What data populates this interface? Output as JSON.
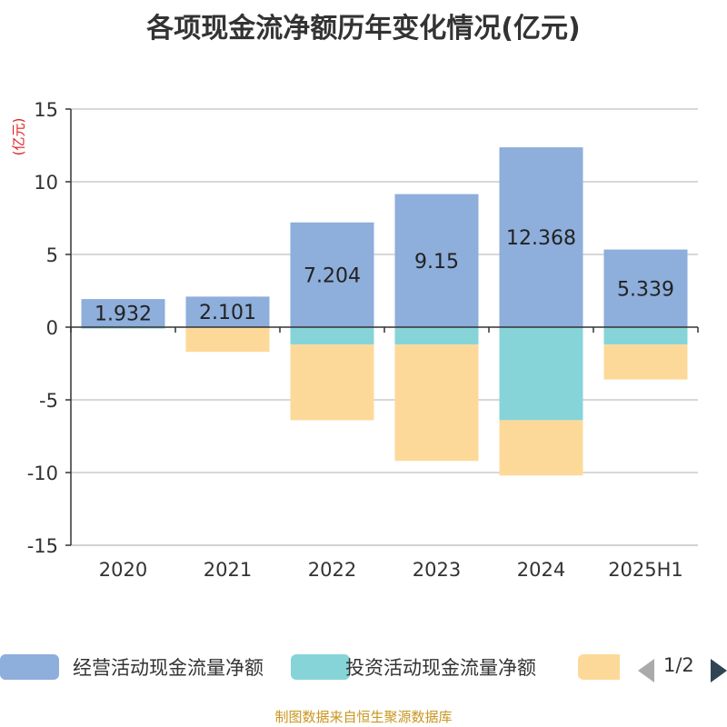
{
  "title": "各项现金流净额历年变化情况(亿元)",
  "unit_label": "(亿元)",
  "source": "制图数据来自恒生聚源数据库",
  "legend": {
    "items": [
      {
        "label": "经营活动现金流量净额",
        "color": "#8eaedb"
      },
      {
        "label": "投资活动现金流量净额",
        "color": "#86d4d8"
      },
      {
        "label": "",
        "color": "#fdd999"
      }
    ],
    "page": "1/2"
  },
  "chart_data": {
    "type": "bar",
    "stacked": true,
    "categories": [
      "2020",
      "2021",
      "2022",
      "2023",
      "2024",
      "2025H1"
    ],
    "ylim": [
      -15,
      15
    ],
    "yticks": [
      15,
      10,
      5,
      0,
      -5,
      -10,
      -15
    ],
    "ylabel": "(亿元)",
    "grid": true,
    "legend_position": "bottom",
    "series": [
      {
        "name": "经营活动现金流量净额",
        "color": "#8eaedb",
        "values": [
          1.932,
          2.101,
          7.204,
          9.15,
          12.368,
          5.339
        ],
        "show_labels": true
      },
      {
        "name": "投资活动现金流量净额",
        "color": "#86d4d8",
        "values": [
          -0.1,
          0.0,
          -1.2,
          -1.2,
          -6.4,
          -1.2
        ],
        "show_labels": false
      },
      {
        "color": "#fdd999",
        "values": [
          0.0,
          -1.7,
          -5.2,
          -8.0,
          -3.8,
          -2.4
        ],
        "show_labels": false
      }
    ]
  }
}
